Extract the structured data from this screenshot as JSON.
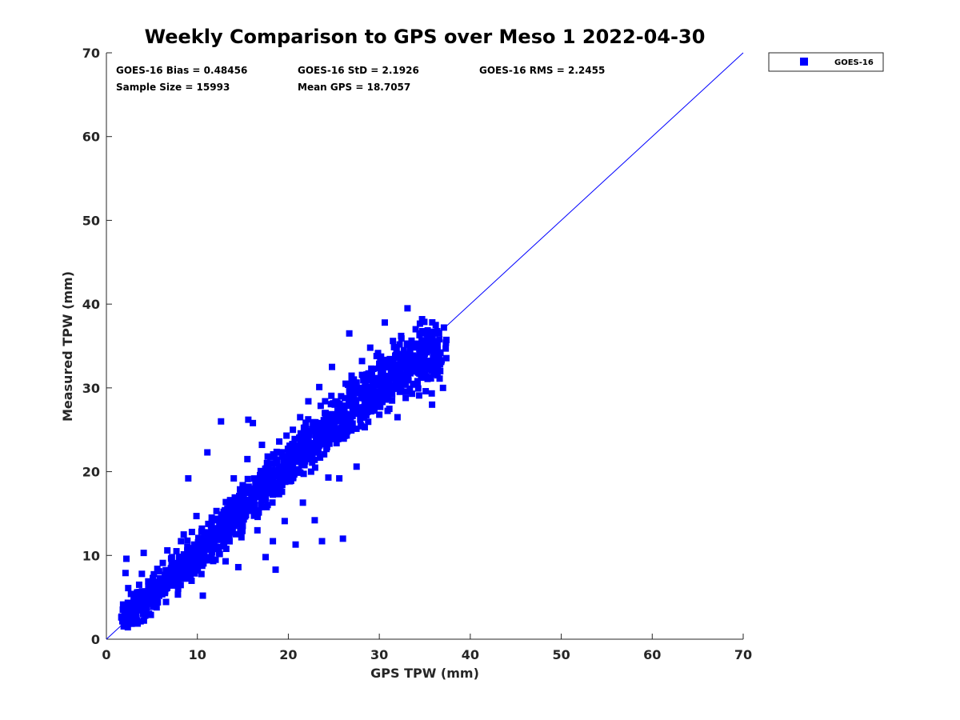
{
  "chart_data": {
    "type": "scatter",
    "title": "Weekly Comparison to GPS over Meso 1 2022-04-30",
    "xlabel": "GPS TPW (mm)",
    "ylabel": "Measured TPW (mm)",
    "xlim": [
      0,
      70
    ],
    "ylim": [
      0,
      70
    ],
    "xticks": [
      0,
      10,
      20,
      30,
      40,
      50,
      60,
      70
    ],
    "yticks": [
      0,
      10,
      20,
      30,
      40,
      50,
      60,
      70
    ],
    "xtick_labels": [
      "0",
      "10",
      "20",
      "30",
      "40",
      "50",
      "60",
      "70"
    ],
    "ytick_labels": [
      "0",
      "10",
      "20",
      "30",
      "40",
      "50",
      "60",
      "70"
    ],
    "grid": false,
    "legend_position": "outside-top-right",
    "reference_line": {
      "type": "one-to-one",
      "x": [
        0,
        70
      ],
      "y": [
        0,
        70
      ],
      "color": "#0000ff"
    },
    "stats": [
      "GOES-16 Bias = 0.48456",
      "GOES-16 StD = 2.1926",
      "GOES-16 RMS = 2.2455",
      "Sample Size = 15993",
      "Mean GPS = 18.7057"
    ],
    "series": [
      {
        "name": "GOES-16",
        "color": "#0000ff",
        "marker": "square",
        "points": [
          [
            2.0,
            3.4
          ],
          [
            2.1,
            7.9
          ],
          [
            2.2,
            9.6
          ],
          [
            2.4,
            6.1
          ],
          [
            2.5,
            2.7
          ],
          [
            2.6,
            3.9
          ],
          [
            2.7,
            5.4
          ],
          [
            3.0,
            4.8
          ],
          [
            3.1,
            2.5
          ],
          [
            3.3,
            3.1
          ],
          [
            3.4,
            5.6
          ],
          [
            3.6,
            6.5
          ],
          [
            3.8,
            4.2
          ],
          [
            3.9,
            7.8
          ],
          [
            4.1,
            10.3
          ],
          [
            4.2,
            3.6
          ],
          [
            4.4,
            5.1
          ],
          [
            4.6,
            6.9
          ],
          [
            4.8,
            4.4
          ],
          [
            5.0,
            5.8
          ],
          [
            5.1,
            7.3
          ],
          [
            5.3,
            4.9
          ],
          [
            5.5,
            6.2
          ],
          [
            5.6,
            8.4
          ],
          [
            5.8,
            5.5
          ],
          [
            6.0,
            7.0
          ],
          [
            6.2,
            9.1
          ],
          [
            6.3,
            6.0
          ],
          [
            6.5,
            7.5
          ],
          [
            6.7,
            10.6
          ],
          [
            6.9,
            6.8
          ],
          [
            7.0,
            8.2
          ],
          [
            7.2,
            9.8
          ],
          [
            7.4,
            7.1
          ],
          [
            7.5,
            8.8
          ],
          [
            7.7,
            10.5
          ],
          [
            7.9,
            7.9
          ],
          [
            8.0,
            9.4
          ],
          [
            8.2,
            11.7
          ],
          [
            8.4,
            8.3
          ],
          [
            8.5,
            12.5
          ],
          [
            8.7,
            9.9
          ],
          [
            8.9,
            11.0
          ],
          [
            9.0,
            19.2
          ],
          [
            9.1,
            8.6
          ],
          [
            9.3,
            10.4
          ],
          [
            9.4,
            12.8
          ],
          [
            9.6,
            9.5
          ],
          [
            9.8,
            11.2
          ],
          [
            9.9,
            14.7
          ],
          [
            10.0,
            10.0
          ],
          [
            10.2,
            11.8
          ],
          [
            10.3,
            8.9
          ],
          [
            10.5,
            13.2
          ],
          [
            10.6,
            5.2
          ],
          [
            10.8,
            10.9
          ],
          [
            11.0,
            12.4
          ],
          [
            11.1,
            22.3
          ],
          [
            11.3,
            11.5
          ],
          [
            11.5,
            13.6
          ],
          [
            11.6,
            10.6
          ],
          [
            11.8,
            14.2
          ],
          [
            12.0,
            12.1
          ],
          [
            12.1,
            15.3
          ],
          [
            12.3,
            11.0
          ],
          [
            12.5,
            13.4
          ],
          [
            12.6,
            26.0
          ],
          [
            12.8,
            12.7
          ],
          [
            13.0,
            14.8
          ],
          [
            13.1,
            9.3
          ],
          [
            13.3,
            15.6
          ],
          [
            13.5,
            13.5
          ],
          [
            13.6,
            16.6
          ],
          [
            13.8,
            12.9
          ],
          [
            14.0,
            19.2
          ],
          [
            14.1,
            14.4
          ],
          [
            14.3,
            16.0
          ],
          [
            14.5,
            8.6
          ],
          [
            14.6,
            17.1
          ],
          [
            14.8,
            15.0
          ],
          [
            15.0,
            18.3
          ],
          [
            15.1,
            14.3
          ],
          [
            15.3,
            16.5
          ],
          [
            15.5,
            21.5
          ],
          [
            15.6,
            26.2
          ],
          [
            15.8,
            16.1
          ],
          [
            16.0,
            17.8
          ],
          [
            16.1,
            25.8
          ],
          [
            16.3,
            15.7
          ],
          [
            16.5,
            18.5
          ],
          [
            16.6,
            13.0
          ],
          [
            16.8,
            17.4
          ],
          [
            17.0,
            19.6
          ],
          [
            17.1,
            23.2
          ],
          [
            17.3,
            18.1
          ],
          [
            17.5,
            9.8
          ],
          [
            17.6,
            20.4
          ],
          [
            17.8,
            17.5
          ],
          [
            18.0,
            21.0
          ],
          [
            18.1,
            18.8
          ],
          [
            18.3,
            11.7
          ],
          [
            18.5,
            22.0
          ],
          [
            18.6,
            8.3
          ],
          [
            18.8,
            19.5
          ],
          [
            19.0,
            23.6
          ],
          [
            19.1,
            20.1
          ],
          [
            19.3,
            17.6
          ],
          [
            19.5,
            21.8
          ],
          [
            19.6,
            14.1
          ],
          [
            19.8,
            24.3
          ],
          [
            20.0,
            20.6
          ],
          [
            20.1,
            22.4
          ],
          [
            20.3,
            18.9
          ],
          [
            20.5,
            25.0
          ],
          [
            20.6,
            21.2
          ],
          [
            20.8,
            11.3
          ],
          [
            21.0,
            23.1
          ],
          [
            21.1,
            20.2
          ],
          [
            21.3,
            26.5
          ],
          [
            21.5,
            22.0
          ],
          [
            21.6,
            16.3
          ],
          [
            21.8,
            24.2
          ],
          [
            22.0,
            21.5
          ],
          [
            22.2,
            28.4
          ],
          [
            22.3,
            23.0
          ],
          [
            22.5,
            20.0
          ],
          [
            22.7,
            25.5
          ],
          [
            22.9,
            14.2
          ],
          [
            23.0,
            24.8
          ],
          [
            23.2,
            22.6
          ],
          [
            23.4,
            30.1
          ],
          [
            23.5,
            25.8
          ],
          [
            23.7,
            11.7
          ],
          [
            23.9,
            23.5
          ],
          [
            24.1,
            27.0
          ],
          [
            24.2,
            24.4
          ],
          [
            24.4,
            19.3
          ],
          [
            24.6,
            26.3
          ],
          [
            24.8,
            32.5
          ],
          [
            24.9,
            25.2
          ],
          [
            25.1,
            28.0
          ],
          [
            25.3,
            23.4
          ],
          [
            25.5,
            26.8
          ],
          [
            25.6,
            19.2
          ],
          [
            25.8,
            29.0
          ],
          [
            26.0,
            12.0
          ],
          [
            26.1,
            26.4
          ],
          [
            26.3,
            30.5
          ],
          [
            26.5,
            24.8
          ],
          [
            26.7,
            36.5
          ],
          [
            26.8,
            28.2
          ],
          [
            27.0,
            25.6
          ],
          [
            27.2,
            31.0
          ],
          [
            27.4,
            27.4
          ],
          [
            27.5,
            20.6
          ],
          [
            27.7,
            29.5
          ],
          [
            27.9,
            26.2
          ],
          [
            28.1,
            33.2
          ],
          [
            28.2,
            28.8
          ],
          [
            28.4,
            25.3
          ],
          [
            28.6,
            31.6
          ],
          [
            28.8,
            29.0
          ],
          [
            29.0,
            34.8
          ],
          [
            29.1,
            27.2
          ],
          [
            29.3,
            30.9
          ],
          [
            29.5,
            28.1
          ],
          [
            29.7,
            33.8
          ],
          [
            29.8,
            29.6
          ],
          [
            30.0,
            26.8
          ],
          [
            30.2,
            32.4
          ],
          [
            30.4,
            30.2
          ],
          [
            30.6,
            37.8
          ],
          [
            30.7,
            28.6
          ],
          [
            30.9,
            33.0
          ],
          [
            31.1,
            27.5
          ],
          [
            31.3,
            31.8
          ],
          [
            31.5,
            35.6
          ],
          [
            31.6,
            29.9
          ],
          [
            31.8,
            33.9
          ],
          [
            32.0,
            26.5
          ],
          [
            32.2,
            31.2
          ],
          [
            32.4,
            36.2
          ],
          [
            32.5,
            30.4
          ],
          [
            32.7,
            34.5
          ],
          [
            32.9,
            28.8
          ],
          [
            33.1,
            39.5
          ],
          [
            33.3,
            32.6
          ],
          [
            33.4,
            35.0
          ],
          [
            33.6,
            29.3
          ],
          [
            33.8,
            33.4
          ],
          [
            34.0,
            37.0
          ],
          [
            34.2,
            30.8
          ],
          [
            34.4,
            34.1
          ],
          [
            34.5,
            31.9
          ],
          [
            34.7,
            38.2
          ],
          [
            34.9,
            33.5
          ],
          [
            35.1,
            29.6
          ],
          [
            35.3,
            35.4
          ],
          [
            35.5,
            32.2
          ],
          [
            35.7,
            36.7
          ],
          [
            35.8,
            28.0
          ],
          [
            36.0,
            34.3
          ],
          [
            36.2,
            37.5
          ],
          [
            36.4,
            31.5
          ],
          [
            36.6,
            35.8
          ],
          [
            36.8,
            33.1
          ],
          [
            37.0,
            30.0
          ],
          [
            37.1,
            37.2
          ],
          [
            37.3,
            34.7
          ]
        ],
        "core": {
          "band_center_offset": 0.0,
          "band_half_width": 1.5,
          "x_range": [
            2,
            37
          ],
          "dense_points": [
            [
              2.3,
              2.6
            ],
            [
              3.0,
              3.2
            ],
            [
              3.7,
              3.9
            ],
            [
              4.4,
              4.6
            ],
            [
              5.1,
              5.3
            ],
            [
              5.8,
              6.0
            ],
            [
              6.5,
              6.7
            ],
            [
              7.2,
              7.4
            ],
            [
              7.9,
              8.1
            ],
            [
              8.6,
              8.8
            ],
            [
              9.3,
              9.5
            ],
            [
              10.0,
              10.2
            ],
            [
              10.7,
              10.9
            ],
            [
              11.4,
              11.7
            ],
            [
              12.1,
              12.4
            ],
            [
              12.8,
              13.1
            ],
            [
              13.5,
              13.9
            ],
            [
              14.2,
              14.6
            ],
            [
              14.9,
              15.4
            ],
            [
              15.6,
              16.1
            ],
            [
              16.3,
              16.8
            ],
            [
              17.0,
              17.6
            ],
            [
              17.7,
              18.3
            ],
            [
              18.4,
              19.0
            ],
            [
              19.1,
              19.8
            ],
            [
              19.8,
              20.5
            ],
            [
              20.5,
              21.2
            ],
            [
              21.2,
              21.9
            ],
            [
              21.9,
              22.6
            ],
            [
              22.6,
              23.3
            ],
            [
              23.3,
              24.0
            ],
            [
              24.0,
              24.7
            ],
            [
              24.7,
              25.4
            ],
            [
              25.4,
              26.1
            ],
            [
              26.1,
              26.8
            ],
            [
              26.8,
              27.5
            ],
            [
              27.5,
              28.2
            ],
            [
              28.2,
              28.9
            ],
            [
              28.9,
              29.6
            ],
            [
              29.6,
              30.2
            ],
            [
              30.3,
              30.7
            ],
            [
              31.0,
              31.2
            ],
            [
              31.7,
              31.7
            ],
            [
              32.4,
              32.2
            ],
            [
              33.1,
              32.7
            ],
            [
              33.8,
              33.1
            ],
            [
              34.5,
              33.5
            ],
            [
              35.2,
              33.9
            ],
            [
              35.9,
              34.2
            ],
            [
              36.6,
              34.5
            ]
          ]
        }
      }
    ]
  }
}
